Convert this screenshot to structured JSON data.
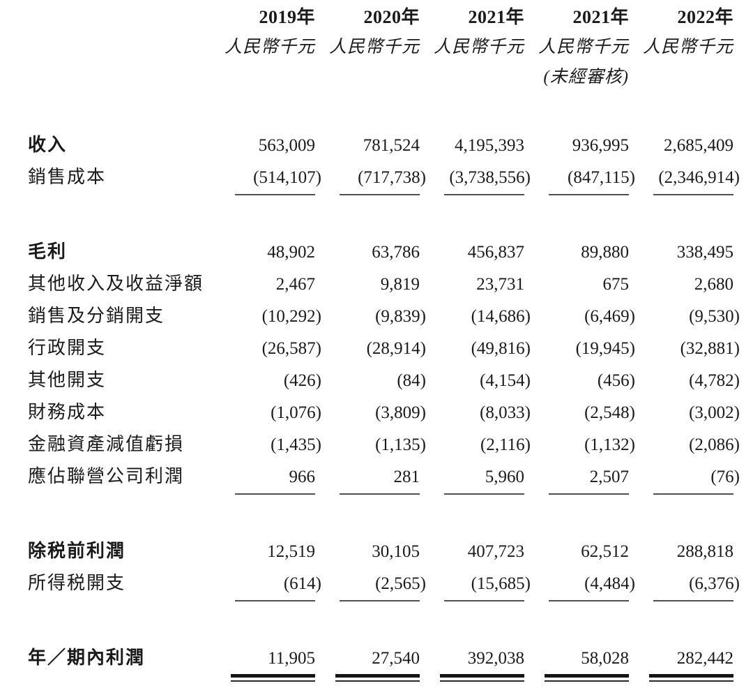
{
  "table": {
    "columns": [
      {
        "year": "2019年",
        "unit": "人民幣千元",
        "note": ""
      },
      {
        "year": "2020年",
        "unit": "人民幣千元",
        "note": ""
      },
      {
        "year": "2021年",
        "unit": "人民幣千元",
        "note": ""
      },
      {
        "year": "2021年",
        "unit": "人民幣千元",
        "note": "(未經審核)"
      },
      {
        "year": "2022年",
        "unit": "人民幣千元",
        "note": ""
      }
    ],
    "rows": [
      {
        "label": "收入",
        "values": [
          "563,009",
          "781,524",
          "4,195,393",
          "936,995",
          "2,685,409"
        ]
      },
      {
        "label": "銷售成本",
        "values": [
          "(514,107)",
          "(717,738)",
          "(3,738,556)",
          "(847,115)",
          "(2,346,914)"
        ]
      },
      {
        "label": "毛利",
        "values": [
          "48,902",
          "63,786",
          "456,837",
          "89,880",
          "338,495"
        ]
      },
      {
        "label": "其他收入及收益淨額",
        "values": [
          "2,467",
          "9,819",
          "23,731",
          "675",
          "2,680"
        ]
      },
      {
        "label": "銷售及分銷開支",
        "values": [
          "(10,292)",
          "(9,839)",
          "(14,686)",
          "(6,469)",
          "(9,530)"
        ]
      },
      {
        "label": "行政開支",
        "values": [
          "(26,587)",
          "(28,914)",
          "(49,816)",
          "(19,945)",
          "(32,881)"
        ]
      },
      {
        "label": "其他開支",
        "values": [
          "(426)",
          "(84)",
          "(4,154)",
          "(456)",
          "(4,782)"
        ]
      },
      {
        "label": "財務成本",
        "values": [
          "(1,076)",
          "(3,809)",
          "(8,033)",
          "(2,548)",
          "(3,002)"
        ]
      },
      {
        "label": "金融資產減值虧損",
        "values": [
          "(1,435)",
          "(1,135)",
          "(2,116)",
          "(1,132)",
          "(2,086)"
        ]
      },
      {
        "label": "應佔聯營公司利潤",
        "values": [
          "966",
          "281",
          "5,960",
          "2,507",
          "(76)"
        ]
      },
      {
        "label": "除税前利潤",
        "values": [
          "12,519",
          "30,105",
          "407,723",
          "62,512",
          "288,818"
        ]
      },
      {
        "label": "所得税開支",
        "values": [
          "(614)",
          "(2,565)",
          "(15,685)",
          "(4,484)",
          "(6,376)"
        ]
      },
      {
        "label": "年／期內利潤",
        "values": [
          "11,905",
          "27,540",
          "392,038",
          "58,028",
          "282,442"
        ]
      }
    ]
  }
}
